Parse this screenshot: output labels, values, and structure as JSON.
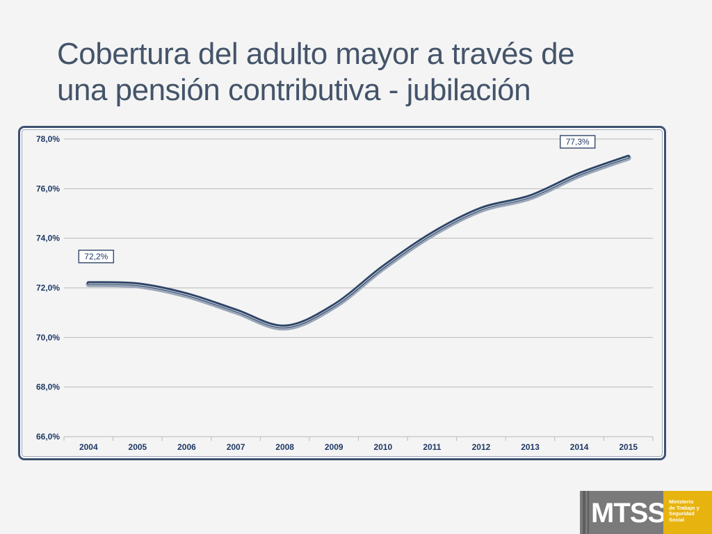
{
  "slide": {
    "title_line1": "Cobertura del adulto mayor a través de",
    "title_line2": "una pensión contributiva - jubilación"
  },
  "logo": {
    "text": "MTSS",
    "sub_lines": [
      "Ministerio",
      "de Trabajo y",
      "Seguridad",
      "Social"
    ]
  },
  "colors": {
    "title": "#44546a",
    "line": "#2e4567",
    "frame": "#3d5170",
    "grid": "#b8b8b8",
    "axis_text": "#1f3864",
    "logo_gray": "#7a7a7a",
    "logo_gold": "#e7b30f"
  },
  "chart_data": {
    "type": "line",
    "title": "",
    "xlabel": "",
    "ylabel": "",
    "categories": [
      "2004",
      "2005",
      "2006",
      "2007",
      "2008",
      "2009",
      "2010",
      "2011",
      "2012",
      "2013",
      "2014",
      "2015"
    ],
    "series": [
      {
        "name": "Cobertura",
        "values": [
          72.2,
          72.15,
          71.75,
          71.1,
          70.45,
          71.3,
          72.85,
          74.2,
          75.2,
          75.7,
          76.6,
          77.3
        ]
      }
    ],
    "ylim": [
      66,
      78
    ],
    "yticks": [
      66,
      68,
      70,
      72,
      74,
      76,
      78
    ],
    "ytick_labels": [
      "66,0%",
      "68,0%",
      "70,0%",
      "72,0%",
      "74,0%",
      "76,0%",
      "78,0%"
    ],
    "grid": true,
    "annotations": [
      {
        "index": 0,
        "text": "72,2%",
        "position": "above"
      },
      {
        "index": 11,
        "text": "77,3%",
        "position": "above-left"
      }
    ]
  }
}
